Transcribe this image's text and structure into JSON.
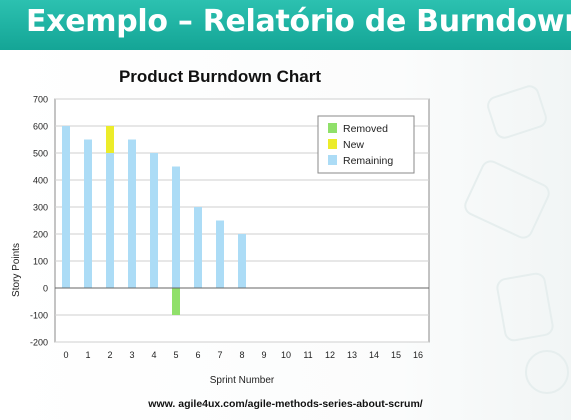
{
  "slide": {
    "title": "Exemplo – Relatório de Burndown",
    "source": "www. agile4ux.com/agile-methods-series-about-scrum/"
  },
  "colors": {
    "banner": "#1fb3a3",
    "removed": "#90e06a",
    "new": "#ecec2a",
    "remaining": "#acdcf6"
  },
  "chart_data": {
    "type": "bar",
    "stacked": true,
    "title": "Product Burndown Chart",
    "xlabel": "Sprint Number",
    "ylabel": "Story Points",
    "ylim": [
      -200,
      700
    ],
    "yticks": [
      700,
      600,
      500,
      400,
      300,
      200,
      100,
      0,
      -100,
      -200
    ],
    "categories": [
      "0",
      "1",
      "2",
      "3",
      "4",
      "5",
      "6",
      "7",
      "8",
      "9",
      "10",
      "11",
      "12",
      "13",
      "14",
      "15",
      "16"
    ],
    "grid": true,
    "legend_position": "top-right",
    "series": [
      {
        "name": "Removed",
        "color": "#90e06a",
        "values": [
          0,
          0,
          0,
          0,
          0,
          -100,
          0,
          0,
          0,
          null,
          null,
          null,
          null,
          null,
          null,
          null,
          null
        ]
      },
      {
        "name": "New",
        "color": "#ecec2a",
        "values": [
          0,
          0,
          100,
          0,
          0,
          0,
          0,
          0,
          0,
          null,
          null,
          null,
          null,
          null,
          null,
          null,
          null
        ]
      },
      {
        "name": "Remaining",
        "color": "#acdcf6",
        "values": [
          600,
          550,
          500,
          550,
          500,
          450,
          300,
          250,
          200,
          null,
          null,
          null,
          null,
          null,
          null,
          null,
          null
        ]
      }
    ]
  }
}
